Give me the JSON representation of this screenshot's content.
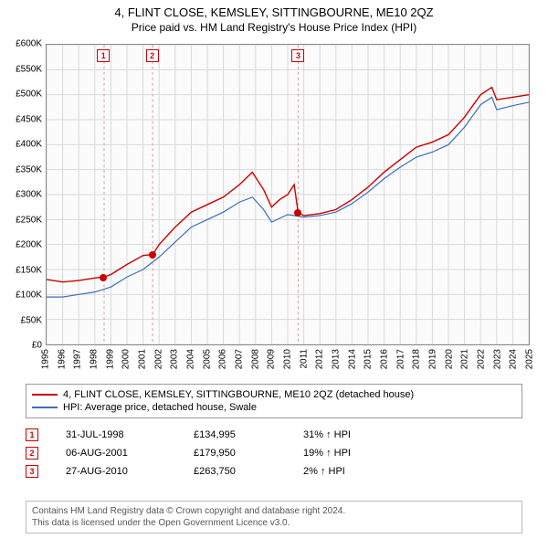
{
  "title": "4, FLINT CLOSE, KEMSLEY, SITTINGBOURNE, ME10 2QZ",
  "subtitle": "Price paid vs. HM Land Registry's House Price Index (HPI)",
  "chart": {
    "type": "line",
    "background_color": "#fbfbfb",
    "grid_color": "#d9d9d9",
    "border_color": "#888888",
    "x": {
      "min": 1995,
      "max": 2025,
      "ticks": [
        1995,
        1996,
        1997,
        1998,
        1999,
        2000,
        2001,
        2002,
        2003,
        2004,
        2005,
        2006,
        2007,
        2008,
        2009,
        2010,
        2011,
        2012,
        2013,
        2014,
        2015,
        2016,
        2017,
        2018,
        2019,
        2020,
        2021,
        2022,
        2023,
        2024,
        2025
      ],
      "label_fontsize": 10
    },
    "y": {
      "min": 0,
      "max": 600000,
      "ticks": [
        0,
        50000,
        100000,
        150000,
        200000,
        250000,
        300000,
        350000,
        400000,
        450000,
        500000,
        550000,
        600000
      ],
      "tick_labels": [
        "£0",
        "£50K",
        "£100K",
        "£150K",
        "£200K",
        "£250K",
        "£300K",
        "£350K",
        "£400K",
        "£450K",
        "£500K",
        "£550K",
        "£600K"
      ],
      "label_fontsize": 10
    },
    "series": [
      {
        "name": "property",
        "label": "4, FLINT CLOSE, KEMSLEY, SITTINGBOURNE, ME10 2QZ (detached house)",
        "color": "#cc0000",
        "line_width": 1.4,
        "points": [
          [
            1995.0,
            130000
          ],
          [
            1996.0,
            125000
          ],
          [
            1997.0,
            128000
          ],
          [
            1998.0,
            133000
          ],
          [
            1998.58,
            134995
          ],
          [
            1999.0,
            140000
          ],
          [
            2000.0,
            160000
          ],
          [
            2001.0,
            178000
          ],
          [
            2001.6,
            179950
          ],
          [
            2002.0,
            200000
          ],
          [
            2003.0,
            235000
          ],
          [
            2004.0,
            265000
          ],
          [
            2005.0,
            280000
          ],
          [
            2006.0,
            295000
          ],
          [
            2007.0,
            320000
          ],
          [
            2007.8,
            345000
          ],
          [
            2008.5,
            310000
          ],
          [
            2009.0,
            275000
          ],
          [
            2009.5,
            290000
          ],
          [
            2010.0,
            300000
          ],
          [
            2010.4,
            320000
          ],
          [
            2010.65,
            263750
          ],
          [
            2011.0,
            258000
          ],
          [
            2012.0,
            262000
          ],
          [
            2013.0,
            270000
          ],
          [
            2014.0,
            290000
          ],
          [
            2015.0,
            315000
          ],
          [
            2016.0,
            345000
          ],
          [
            2017.0,
            370000
          ],
          [
            2018.0,
            395000
          ],
          [
            2019.0,
            405000
          ],
          [
            2020.0,
            420000
          ],
          [
            2021.0,
            455000
          ],
          [
            2022.0,
            500000
          ],
          [
            2022.7,
            515000
          ],
          [
            2023.0,
            490000
          ],
          [
            2024.0,
            495000
          ],
          [
            2025.0,
            500000
          ]
        ]
      },
      {
        "name": "hpi",
        "label": "HPI: Average price, detached house, Swale",
        "color": "#3a6fb7",
        "line_width": 1.2,
        "points": [
          [
            1995.0,
            95000
          ],
          [
            1996.0,
            95000
          ],
          [
            1997.0,
            100000
          ],
          [
            1998.0,
            105000
          ],
          [
            1999.0,
            115000
          ],
          [
            2000.0,
            135000
          ],
          [
            2001.0,
            150000
          ],
          [
            2002.0,
            175000
          ],
          [
            2003.0,
            205000
          ],
          [
            2004.0,
            235000
          ],
          [
            2005.0,
            250000
          ],
          [
            2006.0,
            265000
          ],
          [
            2007.0,
            285000
          ],
          [
            2007.8,
            295000
          ],
          [
            2008.5,
            270000
          ],
          [
            2009.0,
            245000
          ],
          [
            2010.0,
            260000
          ],
          [
            2011.0,
            255000
          ],
          [
            2012.0,
            258000
          ],
          [
            2013.0,
            265000
          ],
          [
            2014.0,
            282000
          ],
          [
            2015.0,
            305000
          ],
          [
            2016.0,
            332000
          ],
          [
            2017.0,
            355000
          ],
          [
            2018.0,
            375000
          ],
          [
            2019.0,
            385000
          ],
          [
            2020.0,
            400000
          ],
          [
            2021.0,
            435000
          ],
          [
            2022.0,
            480000
          ],
          [
            2022.7,
            495000
          ],
          [
            2023.0,
            470000
          ],
          [
            2024.0,
            478000
          ],
          [
            2025.0,
            485000
          ]
        ]
      }
    ],
    "sale_markers": [
      {
        "n": "1",
        "year": 1998.58,
        "price": 134995,
        "box_color": "#cc0000",
        "dot_color": "#cc0000"
      },
      {
        "n": "2",
        "year": 2001.6,
        "price": 179950,
        "box_color": "#cc0000",
        "dot_color": "#cc0000"
      },
      {
        "n": "3",
        "year": 2010.65,
        "price": 263750,
        "box_color": "#cc0000",
        "dot_color": "#cc0000"
      }
    ],
    "marker_guide_color": "#d0a0a0"
  },
  "legend": {
    "items": [
      {
        "color": "#cc0000",
        "label": "4, FLINT CLOSE, KEMSLEY, SITTINGBOURNE, ME10 2QZ (detached house)"
      },
      {
        "color": "#3a6fb7",
        "label": "HPI: Average price, detached house, Swale"
      }
    ]
  },
  "sales": [
    {
      "n": "1",
      "date": "31-JUL-1998",
      "price": "£134,995",
      "diff": "31% ↑ HPI"
    },
    {
      "n": "2",
      "date": "06-AUG-2001",
      "price": "£179,950",
      "diff": "19% ↑ HPI"
    },
    {
      "n": "3",
      "date": "27-AUG-2010",
      "price": "£263,750",
      "diff": "2% ↑ HPI"
    }
  ],
  "footer": {
    "line1": "Contains HM Land Registry data © Crown copyright and database right 2024.",
    "line2": "This data is licensed under the Open Government Licence v3.0."
  }
}
